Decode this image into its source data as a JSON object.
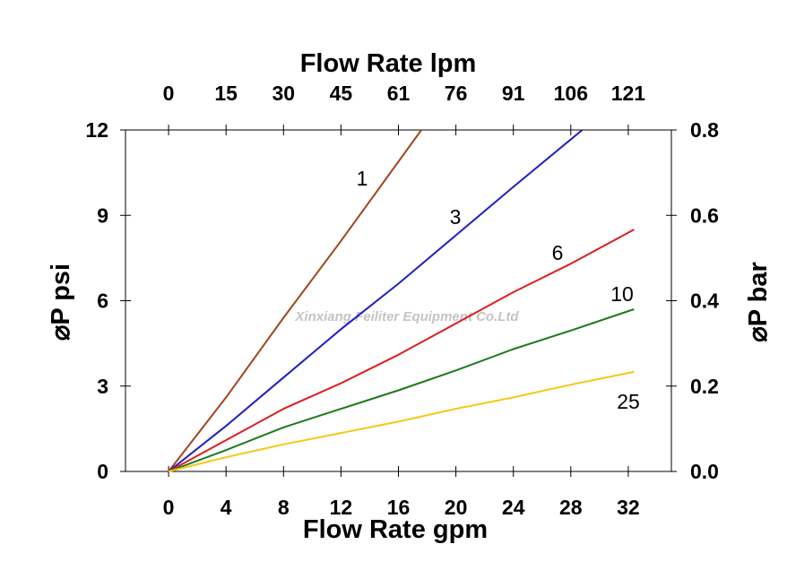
{
  "chart_data": {
    "type": "line",
    "title": "",
    "xlabel": "Flow Rate gpm",
    "x2label": "Flow Rate lpm",
    "ylabel": "⌀P psi",
    "y2label": "⌀P bar",
    "xlim": [
      -3,
      35
    ],
    "ylim": [
      0,
      12
    ],
    "y2lim": [
      0,
      0.8
    ],
    "x_ticks": [
      "0",
      "4",
      "8",
      "12",
      "16",
      "20",
      "24",
      "28",
      "32"
    ],
    "x_tick_values": [
      0,
      4,
      8,
      12,
      16,
      20,
      24,
      28,
      32
    ],
    "x2_ticks": [
      "0",
      "15",
      "30",
      "45",
      "61",
      "76",
      "91",
      "106",
      "121"
    ],
    "y_ticks": [
      "0",
      "3",
      "6",
      "9",
      "12"
    ],
    "y_tick_values": [
      0,
      3,
      6,
      9,
      12
    ],
    "y2_ticks": [
      "0.0",
      "0.2",
      "0.4",
      "0.6",
      "0.8"
    ],
    "y2_tick_values": [
      0,
      0.2,
      0.4,
      0.6,
      0.8
    ],
    "grid": false,
    "series": [
      {
        "name": "1",
        "color": "#a0461a",
        "x": [
          0,
          4,
          8,
          12,
          17.6
        ],
        "y": [
          0,
          2.6,
          5.4,
          8.1,
          12
        ]
      },
      {
        "name": "3",
        "color": "#1e1ec8",
        "x": [
          0,
          4,
          8,
          12,
          16,
          20,
          24,
          28.8
        ],
        "y": [
          0,
          1.6,
          3.3,
          5.0,
          6.6,
          8.3,
          10.0,
          12
        ]
      },
      {
        "name": "6",
        "color": "#dc1e1e",
        "x": [
          0,
          4,
          8,
          12,
          16,
          20,
          24,
          28,
          32.4
        ],
        "y": [
          0,
          1.1,
          2.2,
          3.1,
          4.1,
          5.2,
          6.3,
          7.3,
          8.5
        ]
      },
      {
        "name": "10",
        "color": "#1a7a1a",
        "x": [
          0,
          4,
          8,
          12,
          16,
          20,
          24,
          28,
          32.4
        ],
        "y": [
          0,
          0.75,
          1.55,
          2.2,
          2.85,
          3.55,
          4.3,
          4.95,
          5.7
        ]
      },
      {
        "name": "25",
        "color": "#f5c814",
        "x": [
          0,
          4,
          8,
          12,
          16,
          20,
          24,
          28,
          32.4
        ],
        "y": [
          0,
          0.5,
          0.95,
          1.35,
          1.75,
          2.2,
          2.6,
          3.05,
          3.5
        ]
      }
    ],
    "watermark": "Xinxiang Feiliter Equipment Co.Ltd"
  }
}
